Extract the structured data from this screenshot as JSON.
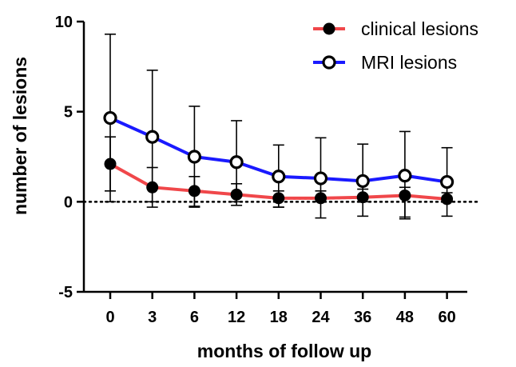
{
  "chart_data": {
    "type": "line",
    "title": "",
    "xlabel": "months of follow up",
    "ylabel": "number of lesions",
    "categories": [
      "0",
      "3",
      "6",
      "12",
      "18",
      "24",
      "36",
      "48",
      "60"
    ],
    "ylim": [
      -5,
      10
    ],
    "yticks": [
      "10",
      "5",
      "0",
      "-5"
    ],
    "reference_line": {
      "y": 0,
      "style": "dotted"
    },
    "legend_position": "top-right",
    "series": [
      {
        "name": "clinical lesions",
        "color": "#f0474a",
        "marker": "filled-circle",
        "values": [
          2.1,
          0.8,
          0.6,
          0.4,
          0.2,
          0.2,
          0.25,
          0.35,
          0.15
        ],
        "err_upper": [
          3.6,
          1.9,
          1.4,
          1.0,
          0.6,
          0.6,
          0.7,
          0.8,
          0.5
        ],
        "err_lower": [
          0.6,
          -0.3,
          -0.25,
          -0.2,
          -0.3,
          -0.9,
          -0.8,
          -0.95,
          -0.8
        ]
      },
      {
        "name": "MRI lesions",
        "color": "#1a1aff",
        "marker": "open-circle",
        "values": [
          4.65,
          3.6,
          2.5,
          2.2,
          1.4,
          1.3,
          1.15,
          1.45,
          1.1
        ],
        "err_upper": [
          9.3,
          7.3,
          5.3,
          4.5,
          3.15,
          3.55,
          3.2,
          3.9,
          3.0
        ],
        "err_lower": [
          0.0,
          0.0,
          -0.3,
          0.0,
          -0.3,
          0.0,
          0.0,
          -0.85,
          0.0
        ]
      }
    ]
  }
}
